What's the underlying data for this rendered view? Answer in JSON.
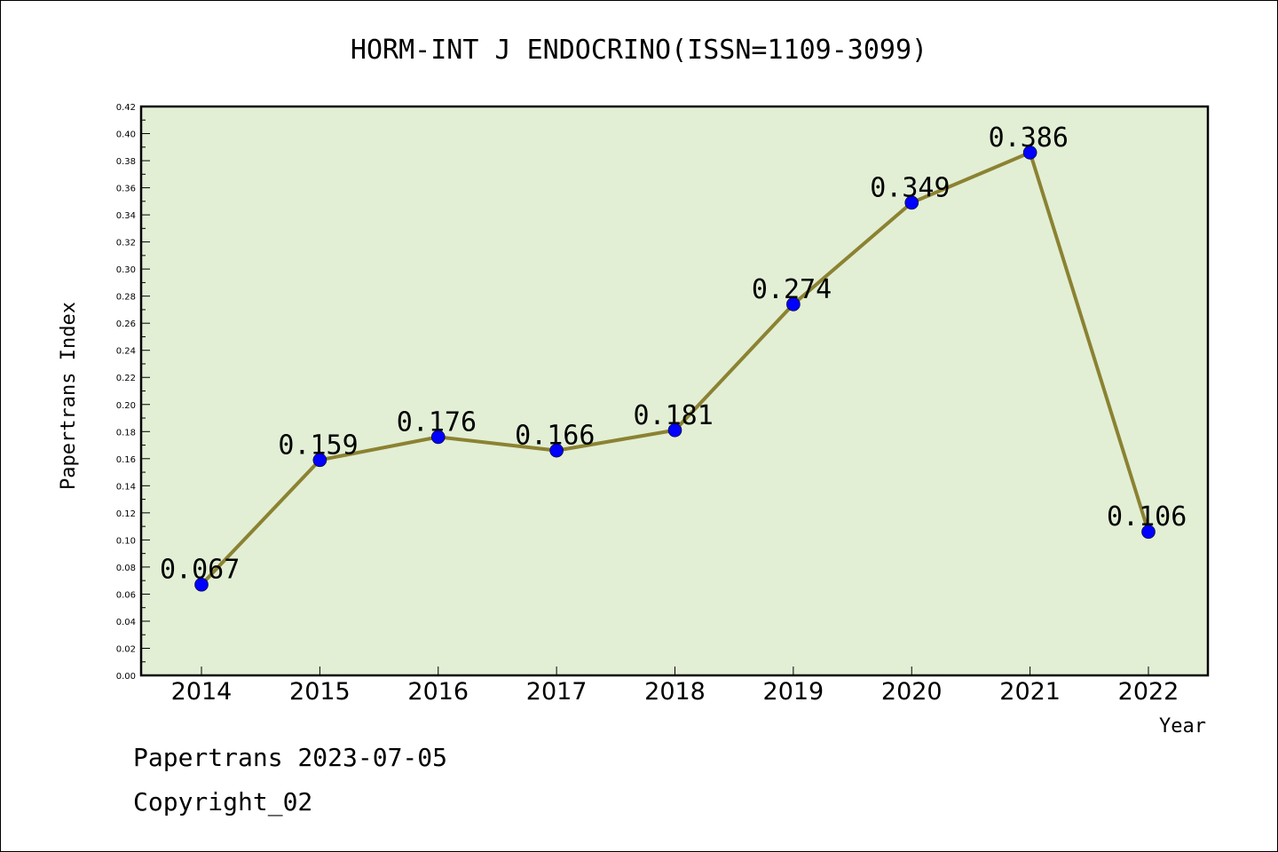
{
  "chart_data": {
    "type": "line",
    "title": "HORM-INT J ENDOCRINO(ISSN=1109-3099)",
    "xlabel": "Year",
    "ylabel": "Papertrans Index",
    "categories": [
      "2014",
      "2015",
      "2016",
      "2017",
      "2018",
      "2019",
      "2020",
      "2021",
      "2022"
    ],
    "values": [
      0.067,
      0.159,
      0.176,
      0.166,
      0.181,
      0.274,
      0.349,
      0.386,
      0.106
    ],
    "data_labels": [
      "0.067",
      "0.159",
      "0.176",
      "0.166",
      "0.181",
      "0.274",
      "0.349",
      "0.386",
      "0.106"
    ],
    "ylim": [
      0,
      0.42
    ],
    "yticks": [
      "0.00",
      "0.02",
      "0.04",
      "0.06",
      "0.08",
      "0.10",
      "0.12",
      "0.14",
      "0.16",
      "0.18",
      "0.20",
      "0.22",
      "0.24",
      "0.26",
      "0.28",
      "0.30",
      "0.32",
      "0.34",
      "0.36",
      "0.38",
      "0.40",
      "0.42"
    ],
    "grid": false,
    "colors": {
      "plot_background": "#e2efd5",
      "line": "#8b8232",
      "marker": "#0000ff"
    }
  },
  "footer": {
    "line1": "Papertrans 2023-07-05",
    "line2": "Copyright_02"
  }
}
